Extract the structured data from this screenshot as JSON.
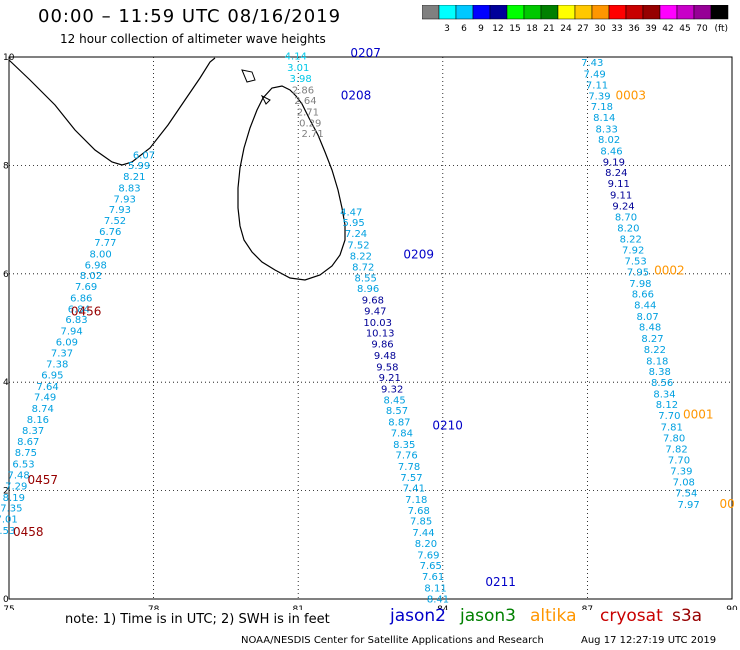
{
  "header": {
    "title": "00:00 – 11:59 UTC 08/16/2019",
    "subtitle": "12 hour collection of altimeter wave heights"
  },
  "colorbar": {
    "colors": [
      "#808080",
      "#00ffff",
      "#00c8ff",
      "#0000ff",
      "#00009a",
      "#00ff00",
      "#00c800",
      "#008000",
      "#ffff00",
      "#ffc800",
      "#ff9600",
      "#ff0000",
      "#c80000",
      "#960000",
      "#ff00ff",
      "#c800c8",
      "#960096",
      "#000000"
    ],
    "labels": [
      "3",
      "6",
      "9",
      "12",
      "15",
      "18",
      "21",
      "24",
      "27",
      "30",
      "33",
      "36",
      "39",
      "42",
      "45",
      "70"
    ],
    "unit": "(ft)"
  },
  "axes": {
    "x_ticks": [
      "75",
      "78",
      "81",
      "84",
      "87",
      "90"
    ],
    "y_ticks": [
      "0",
      "2",
      "4",
      "6",
      "8",
      "10"
    ],
    "xlim": [
      75,
      90
    ],
    "ylim": [
      0,
      10
    ],
    "grid": true
  },
  "tracks": [
    {
      "color": "#00a0e0",
      "points": [
        {
          "lon": 77.8,
          "lat": 8.13,
          "v": "6.07"
        },
        {
          "lon": 77.7,
          "lat": 7.93,
          "v": "5.99"
        },
        {
          "lon": 77.6,
          "lat": 7.73,
          "v": "8.21"
        },
        {
          "lon": 77.5,
          "lat": 7.52,
          "v": "8.83"
        },
        {
          "lon": 77.4,
          "lat": 7.32,
          "v": "7.93"
        },
        {
          "lon": 77.3,
          "lat": 7.12,
          "v": "7.93"
        },
        {
          "lon": 77.2,
          "lat": 6.92,
          "v": "7.52"
        },
        {
          "lon": 77.1,
          "lat": 6.72,
          "v": "6.76"
        },
        {
          "lon": 77.0,
          "lat": 6.51,
          "v": "7.77"
        },
        {
          "lon": 76.9,
          "lat": 6.3,
          "v": "8.00"
        },
        {
          "lon": 76.8,
          "lat": 6.1,
          "v": "6.98"
        },
        {
          "lon": 76.7,
          "lat": 5.9,
          "v": "8.02"
        },
        {
          "lon": 76.6,
          "lat": 5.7,
          "v": "7.69"
        },
        {
          "lon": 76.5,
          "lat": 5.49,
          "v": "6.86"
        },
        {
          "lon": 76.45,
          "lat": 5.29,
          "v": "6.84"
        },
        {
          "lon": 76.4,
          "lat": 5.09,
          "v": "6.83"
        },
        {
          "lon": 76.3,
          "lat": 4.88,
          "v": "7.94"
        },
        {
          "lon": 76.2,
          "lat": 4.68,
          "v": "6.09"
        },
        {
          "lon": 76.1,
          "lat": 4.47,
          "v": "7.37"
        },
        {
          "lon": 76.0,
          "lat": 4.27,
          "v": "7.38"
        },
        {
          "lon": 75.9,
          "lat": 4.07,
          "v": "6.95"
        },
        {
          "lon": 75.8,
          "lat": 3.86,
          "v": "7.64"
        },
        {
          "lon": 75.75,
          "lat": 3.66,
          "v": "7.49"
        },
        {
          "lon": 75.7,
          "lat": 3.45,
          "v": "8.74"
        },
        {
          "lon": 75.6,
          "lat": 3.25,
          "v": "8.16"
        },
        {
          "lon": 75.5,
          "lat": 3.04,
          "v": "8.37"
        },
        {
          "lon": 75.4,
          "lat": 2.84,
          "v": "8.67"
        },
        {
          "lon": 75.35,
          "lat": 2.64,
          "v": "8.75"
        },
        {
          "lon": 75.3,
          "lat": 2.43,
          "v": "6.53"
        },
        {
          "lon": 75.2,
          "lat": 2.22,
          "v": "7.48"
        },
        {
          "lon": 75.15,
          "lat": 2.02,
          "v": "7.29"
        },
        {
          "lon": 75.1,
          "lat": 1.81,
          "v": "8.19"
        },
        {
          "lon": 75.05,
          "lat": 1.61,
          "v": "7.35"
        },
        {
          "lon": 74.95,
          "lat": 1.41,
          "v": "7.01"
        },
        {
          "lon": 74.9,
          "lat": 1.2,
          "v": "7.53"
        }
      ]
    },
    {
      "color": "#00a0e0",
      "points": [
        {
          "lon": 87.1,
          "lat": 9.83,
          "v": "7.43"
        },
        {
          "lon": 87.15,
          "lat": 9.62,
          "v": "7.49"
        },
        {
          "lon": 87.2,
          "lat": 9.42,
          "v": "7.11"
        },
        {
          "lon": 87.25,
          "lat": 9.22,
          "v": "7.39"
        },
        {
          "lon": 87.3,
          "lat": 9.02,
          "v": "7.18"
        },
        {
          "lon": 87.35,
          "lat": 8.82,
          "v": "8.14"
        },
        {
          "lon": 87.4,
          "lat": 8.61,
          "v": "8.33"
        },
        {
          "lon": 87.45,
          "lat": 8.41,
          "v": "8.02"
        },
        {
          "lon": 87.5,
          "lat": 8.2,
          "v": "8.46"
        },
        {
          "lon": 87.55,
          "lat": 8.0,
          "v": "9.19",
          "c": "#000096"
        },
        {
          "lon": 87.6,
          "lat": 7.8,
          "v": "8.24",
          "c": "#000096"
        },
        {
          "lon": 87.65,
          "lat": 7.6,
          "v": "9.11",
          "c": "#000096"
        },
        {
          "lon": 87.7,
          "lat": 7.39,
          "v": "9.11",
          "c": "#000096"
        },
        {
          "lon": 87.75,
          "lat": 7.19,
          "v": "9.24",
          "c": "#000096"
        },
        {
          "lon": 87.8,
          "lat": 6.98,
          "v": "8.70"
        },
        {
          "lon": 87.85,
          "lat": 6.78,
          "v": "8.20"
        },
        {
          "lon": 87.9,
          "lat": 6.58,
          "v": "8.22"
        },
        {
          "lon": 87.95,
          "lat": 6.37,
          "v": "7.92"
        },
        {
          "lon": 88.0,
          "lat": 6.17,
          "v": "7.53"
        },
        {
          "lon": 88.05,
          "lat": 5.97,
          "v": "7.95"
        },
        {
          "lon": 88.1,
          "lat": 5.76,
          "v": "7.98"
        },
        {
          "lon": 88.15,
          "lat": 5.56,
          "v": "8.66"
        },
        {
          "lon": 88.2,
          "lat": 5.36,
          "v": "8.44"
        },
        {
          "lon": 88.25,
          "lat": 5.15,
          "v": "8.07"
        },
        {
          "lon": 88.3,
          "lat": 4.95,
          "v": "8.48"
        },
        {
          "lon": 88.35,
          "lat": 4.74,
          "v": "8.27"
        },
        {
          "lon": 88.4,
          "lat": 4.54,
          "v": "8.22"
        },
        {
          "lon": 88.45,
          "lat": 4.33,
          "v": "8.18"
        },
        {
          "lon": 88.5,
          "lat": 4.13,
          "v": "8.38"
        },
        {
          "lon": 88.55,
          "lat": 3.93,
          "v": "8.56"
        },
        {
          "lon": 88.6,
          "lat": 3.72,
          "v": "8.34"
        },
        {
          "lon": 88.65,
          "lat": 3.52,
          "v": "8.12"
        },
        {
          "lon": 88.7,
          "lat": 3.32,
          "v": "7.70"
        },
        {
          "lon": 88.75,
          "lat": 3.11,
          "v": "7.81"
        },
        {
          "lon": 88.8,
          "lat": 2.91,
          "v": "7.80"
        },
        {
          "lon": 88.85,
          "lat": 2.7,
          "v": "7.82"
        },
        {
          "lon": 88.9,
          "lat": 2.5,
          "v": "7.70"
        },
        {
          "lon": 88.95,
          "lat": 2.3,
          "v": "7.39"
        },
        {
          "lon": 89.0,
          "lat": 2.09,
          "v": "7.08"
        },
        {
          "lon": 89.05,
          "lat": 1.89,
          "v": "7.54"
        },
        {
          "lon": 89.1,
          "lat": 1.68,
          "v": "7.97"
        }
      ]
    },
    {
      "color": "#00a0e0",
      "points": [
        {
          "lon": 82.1,
          "lat": 7.08,
          "v": "4.47"
        },
        {
          "lon": 82.15,
          "lat": 6.88,
          "v": "5.95"
        },
        {
          "lon": 82.2,
          "lat": 6.68,
          "v": "7.24"
        },
        {
          "lon": 82.25,
          "lat": 6.47,
          "v": "7.52"
        },
        {
          "lon": 82.3,
          "lat": 6.26,
          "v": "8.22"
        },
        {
          "lon": 82.35,
          "lat": 6.06,
          "v": "8.72"
        },
        {
          "lon": 82.4,
          "lat": 5.86,
          "v": "8.55"
        },
        {
          "lon": 82.45,
          "lat": 5.66,
          "v": "8.96"
        },
        {
          "lon": 82.55,
          "lat": 5.45,
          "v": "9.68",
          "c": "#000096"
        },
        {
          "lon": 82.6,
          "lat": 5.25,
          "v": "9.47",
          "c": "#000096"
        },
        {
          "lon": 82.65,
          "lat": 5.04,
          "v": "10.03",
          "c": "#000096"
        },
        {
          "lon": 82.7,
          "lat": 4.84,
          "v": "10.13",
          "c": "#000096"
        },
        {
          "lon": 82.75,
          "lat": 4.64,
          "v": "9.86",
          "c": "#000096"
        },
        {
          "lon": 82.8,
          "lat": 4.43,
          "v": "9.48",
          "c": "#000096"
        },
        {
          "lon": 82.85,
          "lat": 4.22,
          "v": "9.58",
          "c": "#000096"
        },
        {
          "lon": 82.9,
          "lat": 4.02,
          "v": "9.21",
          "c": "#000096"
        },
        {
          "lon": 82.95,
          "lat": 3.81,
          "v": "9.32",
          "c": "#000096"
        },
        {
          "lon": 83.0,
          "lat": 3.61,
          "v": "8.45"
        },
        {
          "lon": 83.05,
          "lat": 3.41,
          "v": "8.57"
        },
        {
          "lon": 83.1,
          "lat": 3.2,
          "v": "8.87"
        },
        {
          "lon": 83.15,
          "lat": 3.0,
          "v": "7.84"
        },
        {
          "lon": 83.2,
          "lat": 2.79,
          "v": "8.35"
        },
        {
          "lon": 83.25,
          "lat": 2.59,
          "v": "7.76"
        },
        {
          "lon": 83.3,
          "lat": 2.38,
          "v": "7.78"
        },
        {
          "lon": 83.35,
          "lat": 2.18,
          "v": "7.57"
        },
        {
          "lon": 83.4,
          "lat": 1.98,
          "v": "7.41"
        },
        {
          "lon": 83.45,
          "lat": 1.77,
          "v": "7.18"
        },
        {
          "lon": 83.5,
          "lat": 1.57,
          "v": "7.68"
        },
        {
          "lon": 83.55,
          "lat": 1.37,
          "v": "7.85"
        },
        {
          "lon": 83.6,
          "lat": 1.16,
          "v": "7.44"
        },
        {
          "lon": 83.65,
          "lat": 0.96,
          "v": "8.20"
        },
        {
          "lon": 83.7,
          "lat": 0.75,
          "v": "7.69"
        },
        {
          "lon": 83.75,
          "lat": 0.55,
          "v": "7.65"
        },
        {
          "lon": 83.8,
          "lat": 0.35,
          "v": "7.61"
        },
        {
          "lon": 83.85,
          "lat": 0.14,
          "v": "8.11"
        },
        {
          "lon": 83.9,
          "lat": -0.06,
          "v": "8.41"
        }
      ]
    },
    {
      "color": "#00c8e8",
      "points": [
        {
          "lon": 80.95,
          "lat": 9.95,
          "v": "4.14"
        },
        {
          "lon": 81.0,
          "lat": 9.74,
          "v": "3.01"
        },
        {
          "lon": 81.05,
          "lat": 9.54,
          "v": "3.98"
        },
        {
          "lon": 81.1,
          "lat": 9.33,
          "v": "2.86",
          "c": "#808080"
        },
        {
          "lon": 81.15,
          "lat": 9.13,
          "v": "2.64",
          "c": "#808080"
        },
        {
          "lon": 81.2,
          "lat": 8.92,
          "v": "2.71",
          "c": "#808080"
        },
        {
          "lon": 81.25,
          "lat": 8.72,
          "v": "0.29",
          "c": "#808080"
        },
        {
          "lon": 81.3,
          "lat": 8.52,
          "v": "2.71",
          "c": "#808080"
        }
      ]
    }
  ],
  "pass_labels": [
    {
      "text": "0207",
      "lon": 82.4,
      "lat": 10.0,
      "color": "#0000c8"
    },
    {
      "text": "0208",
      "lon": 82.2,
      "lat": 9.22,
      "color": "#0000c8"
    },
    {
      "text": "0209",
      "lon": 83.5,
      "lat": 6.28,
      "color": "#0000c8"
    },
    {
      "text": "0210",
      "lon": 84.1,
      "lat": 3.13,
      "color": "#0000c8"
    },
    {
      "text": "0211",
      "lon": 85.2,
      "lat": 0.24,
      "color": "#0000c8"
    },
    {
      "text": "0003",
      "lon": 87.9,
      "lat": 9.22,
      "color": "#ff9600"
    },
    {
      "text": "0002",
      "lon": 88.7,
      "lat": 5.99,
      "color": "#ff9600"
    },
    {
      "text": "0001",
      "lon": 89.3,
      "lat": 3.33,
      "color": "#ff9600"
    },
    {
      "text": "00",
      "lon": 89.9,
      "lat": 1.68,
      "color": "#ff9600"
    },
    {
      "text": "0456",
      "lon": 76.6,
      "lat": 5.23,
      "color": "#960000"
    },
    {
      "text": "0457",
      "lon": 75.7,
      "lat": 2.12,
      "color": "#960000"
    },
    {
      "text": "0458",
      "lon": 75.4,
      "lat": 1.16,
      "color": "#960000"
    }
  ],
  "footer": {
    "note": "note:  1) Time is in UTC;  2) SWH is in feet",
    "satellites": [
      {
        "name": "jason2",
        "color": "#0000c8"
      },
      {
        "name": "jason3",
        "color": "#008000"
      },
      {
        "name": "altika",
        "color": "#ff9600"
      },
      {
        "name": "cryosat",
        "color": "#c80000"
      },
      {
        "name": "s3a",
        "color": "#960000"
      }
    ],
    "credits": "NOAA/NESDIS Center for Satellite Applications and Research",
    "timestamp": "Aug 17 12:27:19 UTC 2019"
  }
}
